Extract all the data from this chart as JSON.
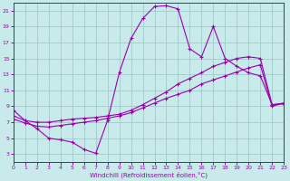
{
  "xlabel": "Windchill (Refroidissement éolien,°C)",
  "xlim": [
    0,
    23
  ],
  "ylim": [
    2,
    22
  ],
  "xticks": [
    0,
    1,
    2,
    3,
    4,
    5,
    6,
    7,
    8,
    9,
    10,
    11,
    12,
    13,
    14,
    15,
    16,
    17,
    18,
    19,
    20,
    21,
    22,
    23
  ],
  "yticks": [
    3,
    5,
    7,
    9,
    11,
    13,
    15,
    17,
    19,
    21
  ],
  "bg_color": "#c8eaea",
  "line_color": "#9900aa",
  "grid_color": "#a0cccc",
  "curve1_x": [
    0,
    1,
    2,
    3,
    4,
    5,
    6,
    7,
    8,
    9,
    10,
    11,
    12,
    13,
    14,
    15,
    16,
    17,
    18,
    19,
    20,
    21,
    22,
    23
  ],
  "curve1_y": [
    8.5,
    7.2,
    6.2,
    5.0,
    4.8,
    4.5,
    3.6,
    3.1,
    7.2,
    13.2,
    17.5,
    20.0,
    21.5,
    21.6,
    21.2,
    16.2,
    15.2,
    19.0,
    15.0,
    14.0,
    13.2,
    12.8,
    9.2,
    9.3
  ],
  "curve2_x": [
    0,
    1,
    2,
    3,
    4,
    5,
    6,
    7,
    8,
    9,
    10,
    11,
    12,
    13,
    14,
    15,
    16,
    17,
    18,
    19,
    20,
    21,
    22,
    23
  ],
  "curve2_y": [
    7.8,
    7.2,
    7.0,
    7.0,
    7.2,
    7.4,
    7.5,
    7.6,
    7.8,
    8.0,
    8.5,
    9.2,
    10.0,
    10.8,
    11.8,
    12.5,
    13.2,
    14.0,
    14.5,
    15.0,
    15.2,
    15.0,
    9.2,
    9.4
  ],
  "curve3_x": [
    0,
    1,
    2,
    3,
    4,
    5,
    6,
    7,
    8,
    9,
    10,
    11,
    12,
    13,
    14,
    15,
    16,
    17,
    18,
    19,
    20,
    21,
    22,
    23
  ],
  "curve3_y": [
    7.4,
    6.9,
    6.5,
    6.4,
    6.6,
    6.8,
    7.0,
    7.2,
    7.5,
    7.8,
    8.2,
    8.8,
    9.4,
    10.0,
    10.5,
    11.0,
    11.8,
    12.3,
    12.8,
    13.3,
    13.8,
    14.2,
    9.0,
    9.4
  ]
}
